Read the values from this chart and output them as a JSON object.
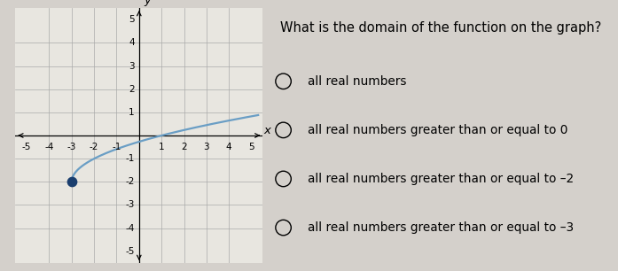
{
  "background_color": "#d4d0cb",
  "graph_bg_color": "#e8e6e0",
  "xlim": [
    -5.5,
    5.5
  ],
  "ylim": [
    -5.5,
    5.5
  ],
  "xticks": [
    -5,
    -4,
    -3,
    -2,
    -1,
    1,
    2,
    3,
    4,
    5
  ],
  "yticks": [
    -5,
    -4,
    -3,
    -2,
    -1,
    1,
    2,
    3,
    4,
    5
  ],
  "xlabel": "x",
  "ylabel": "y",
  "curve_color": "#6a9ec5",
  "curve_x_start": -3,
  "curve_y_start": -2,
  "dot_color": "#1a3e6e",
  "dot_size": 55,
  "question_text": "What is the domain of the function on the graph?",
  "options": [
    "all real numbers",
    "all real numbers greater than or equal to 0",
    "all real numbers greater than or equal to –2",
    "all real numbers greater than or equal to –3"
  ],
  "question_fontsize": 10.5,
  "option_fontsize": 9.8,
  "grid_color": "#aaaaaa",
  "tick_fontsize": 7.5,
  "axis_linewidth": 0.9
}
